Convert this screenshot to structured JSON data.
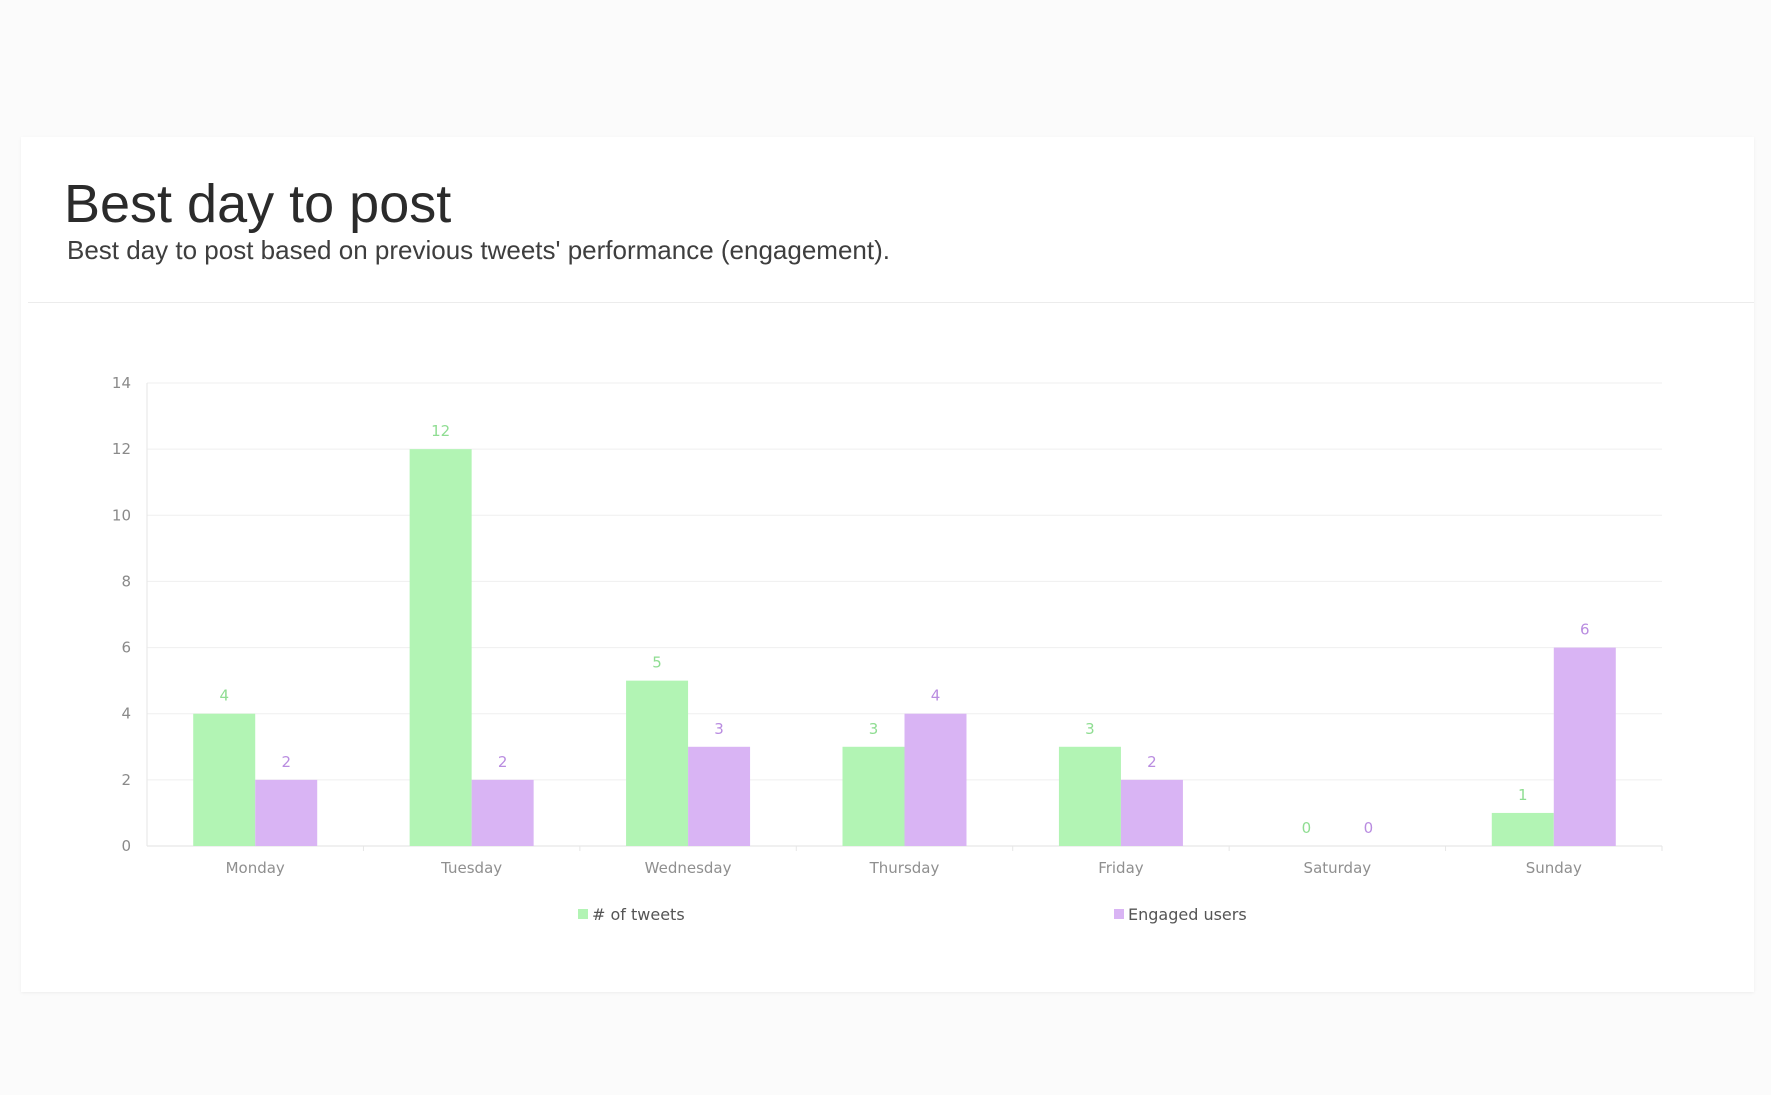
{
  "header": {
    "title": "Best day to post",
    "subtitle": "Best day to post based on previous tweets' performance (engagement)."
  },
  "chart_data": {
    "type": "bar",
    "categories": [
      "Monday",
      "Tuesday",
      "Wednesday",
      "Thursday",
      "Friday",
      "Saturday",
      "Sunday"
    ],
    "series": [
      {
        "name": "# of tweets",
        "values": [
          4,
          12,
          5,
          3,
          3,
          0,
          1
        ],
        "color": "#b2f4b4",
        "label_color": "#8fdd92"
      },
      {
        "name": "Engaged users",
        "values": [
          2,
          2,
          3,
          4,
          2,
          0,
          6
        ],
        "color": "#d9b4f4",
        "label_color": "#b98ce0"
      }
    ],
    "ylim": [
      0,
      14
    ],
    "yticks": [
      0,
      2,
      4,
      6,
      8,
      10,
      12,
      14
    ],
    "grid": true,
    "legend": "bottom",
    "data_labels": true
  }
}
